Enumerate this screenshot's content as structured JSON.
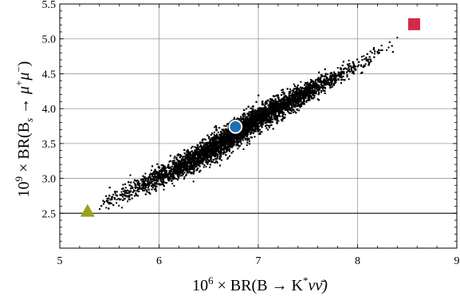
{
  "chart_data": {
    "type": "scatter",
    "xlim": [
      5,
      9
    ],
    "ylim": [
      2.0,
      5.5
    ],
    "grid": true,
    "x_ticks": [
      {
        "value": 5,
        "label": "5"
      },
      {
        "value": 6,
        "label": "6"
      },
      {
        "value": 7,
        "label": "7"
      },
      {
        "value": 8,
        "label": "8"
      },
      {
        "value": 9,
        "label": "9"
      }
    ],
    "y_ticks": [
      {
        "value": 2.5,
        "label": "2.5"
      },
      {
        "value": 3.0,
        "label": "3.0"
      },
      {
        "value": 3.5,
        "label": "3.5"
      },
      {
        "value": 4.0,
        "label": "4.0"
      },
      {
        "value": 4.5,
        "label": "4.5"
      },
      {
        "value": 5.0,
        "label": "5.0"
      },
      {
        "value": 5.5,
        "label": "5.5"
      }
    ],
    "xlabel": {
      "prefix": "10",
      "exp": "6",
      "body": " × BR(B → K",
      "star": "*",
      "tail": "νν̄)"
    },
    "ylabel": {
      "prefix": "10",
      "exp": "9",
      "body": " × BR(B",
      "sub": "s",
      "arrow": " → μ",
      "plus": "+",
      "mu2": "μ",
      "minus": "−",
      "close": ")"
    },
    "reference_line": {
      "y": 2.5
    },
    "scatter_band": {
      "points": [
        [
          5.4,
          2.61
        ],
        [
          6.0,
          3.01
        ],
        [
          6.5,
          3.38
        ],
        [
          6.8,
          3.67
        ],
        [
          7.0,
          3.86
        ],
        [
          7.4,
          4.16
        ],
        [
          7.9,
          4.55
        ],
        [
          8.5,
          5.05
        ],
        [
          8.68,
          5.33
        ]
      ],
      "color": "#000000"
    },
    "markers": [
      {
        "name": "sm-point",
        "shape": "circle",
        "x": 6.77,
        "y": 3.74,
        "color": "#1f6fb5"
      },
      {
        "name": "upper-point",
        "shape": "square",
        "x": 8.57,
        "y": 5.21,
        "color": "#d22a4a"
      },
      {
        "name": "lower-point",
        "shape": "triangle",
        "x": 5.28,
        "y": 2.53,
        "color": "#9aa11a"
      }
    ]
  }
}
